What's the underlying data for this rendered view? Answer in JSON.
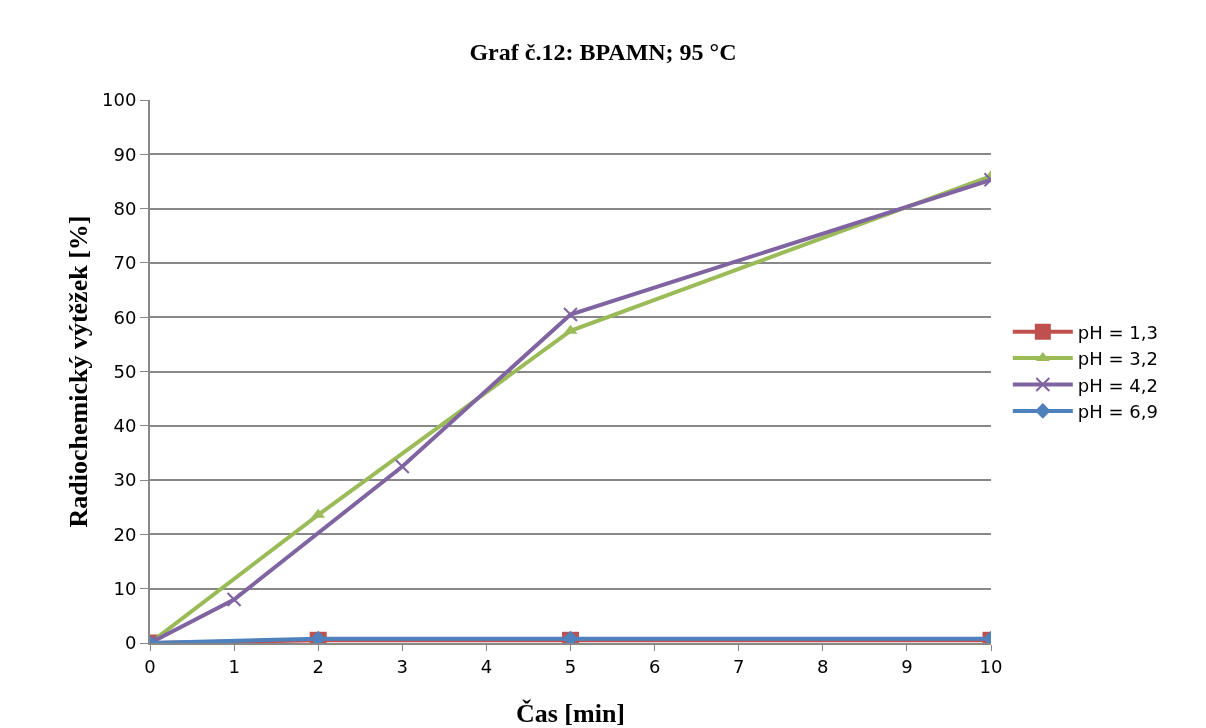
{
  "chart_data": {
    "type": "line",
    "title": "Graf č.12: BPAMN; 95 °C",
    "xlabel": "Čas [min]",
    "ylabel": "Radiochemický výtěžek [%]",
    "xlim": [
      0,
      10
    ],
    "xticks": [
      0,
      1,
      2,
      3,
      4,
      5,
      6,
      7,
      8,
      9,
      10
    ],
    "ylim": [
      0,
      100
    ],
    "yticks": [
      0,
      10,
      20,
      30,
      40,
      50,
      60,
      70,
      80,
      90,
      100
    ],
    "grid": "y",
    "legend": "right",
    "line_style": "solid",
    "series": [
      {
        "name": "pH = 1,3",
        "color": "#c0504d",
        "marker": "square",
        "x": [
          0,
          2,
          5,
          10
        ],
        "values": [
          0,
          0.5,
          0.5,
          0.5
        ]
      },
      {
        "name": "pH = 3,2",
        "color": "#9bbb59",
        "marker": "triangle",
        "x": [
          0,
          2,
          5,
          10
        ],
        "values": [
          0,
          23.6,
          57.5,
          86
        ]
      },
      {
        "name": "pH = 4,2",
        "color": "#8064a2",
        "marker": "cross",
        "x": [
          0,
          1,
          3,
          5,
          10
        ],
        "values": [
          0,
          8,
          32.5,
          60.5,
          85.3
        ]
      },
      {
        "name": "pH = 6,9",
        "color": "#4f81bd",
        "marker": "diamond",
        "x": [
          0,
          2,
          5,
          10
        ],
        "values": [
          0,
          0.8,
          0.8,
          0.8
        ]
      }
    ]
  }
}
